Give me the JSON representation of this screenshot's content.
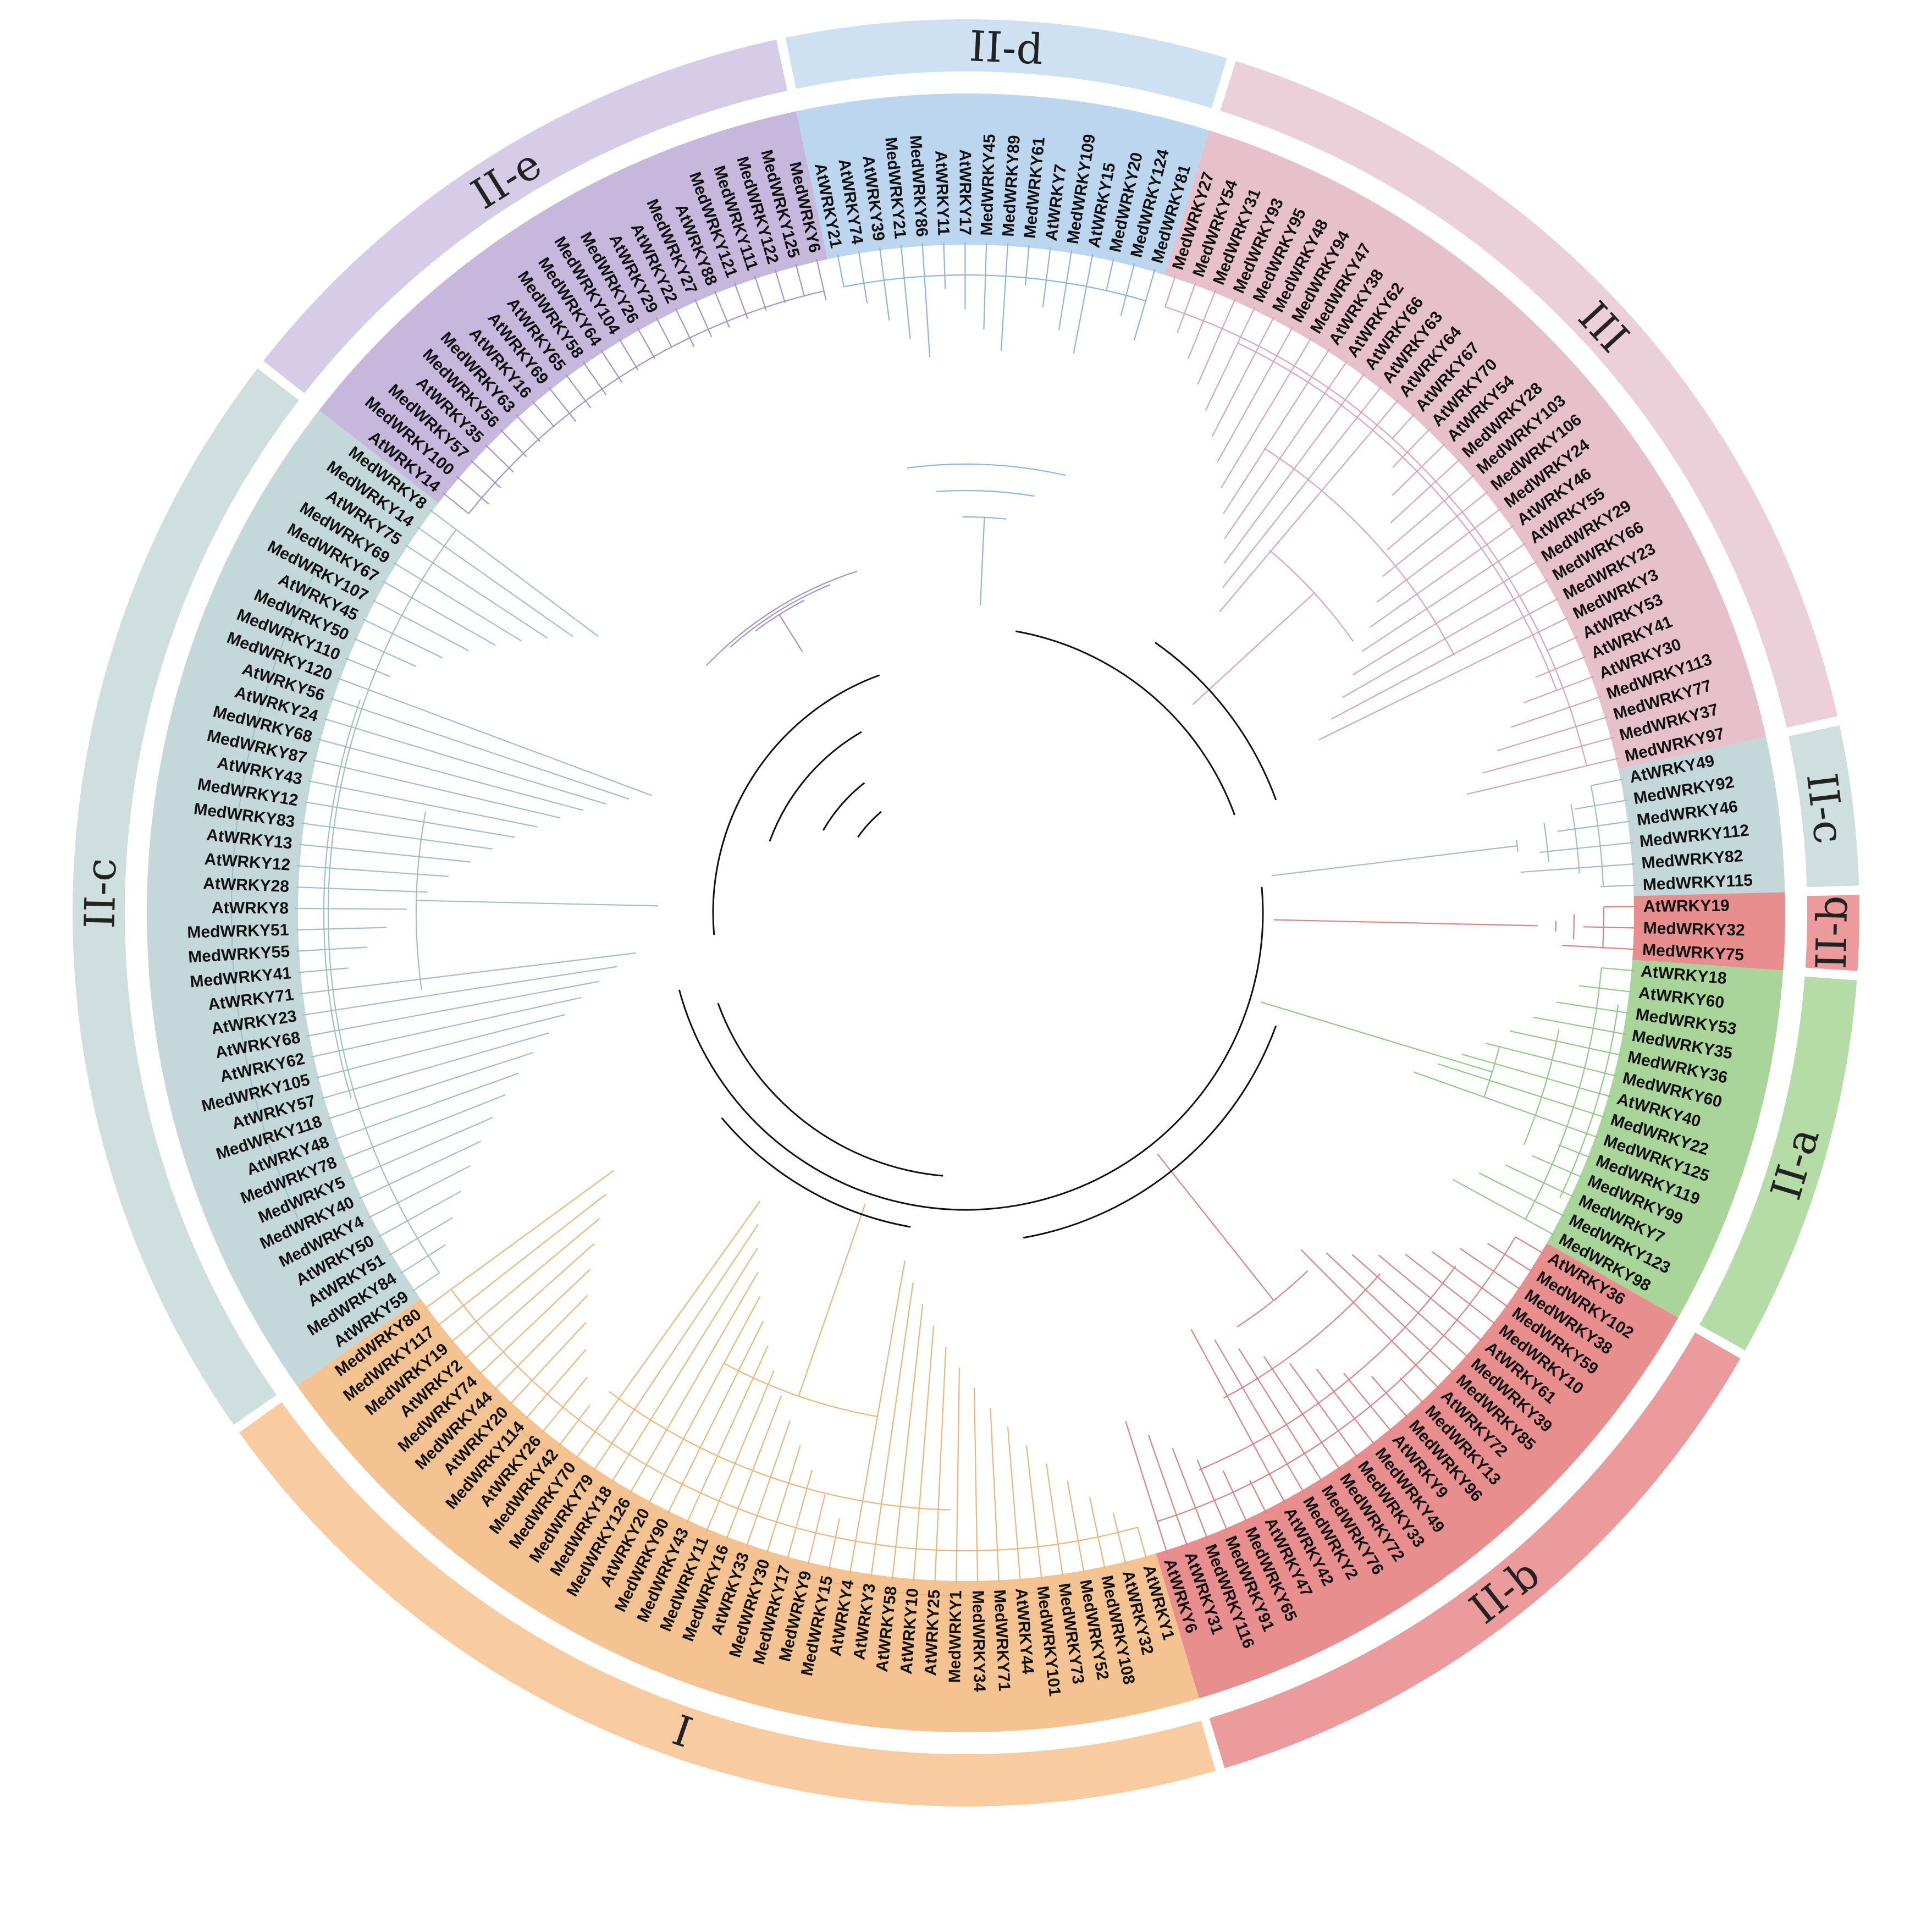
{
  "groups": [
    {
      "label": "I",
      "name": "group-I",
      "arc_color": "#f8cba0",
      "bg_color": "#f5c391",
      "line_color": "#f0b47a"
    },
    {
      "label": "II-a",
      "name": "group-IIa",
      "arc_color": "#b5dca6",
      "bg_color": "#a9d49a",
      "line_color": "#92c987"
    },
    {
      "label": "II-b",
      "name": "group-IIb",
      "arc_color": "#eb9b9b",
      "bg_color": "#e88e8e",
      "line_color": "#e27f7f"
    },
    {
      "label": "II-c",
      "name": "group-IIc",
      "arc_color": "#cfdfdf",
      "bg_color": "#c4d8d9",
      "line_color": "#9fbfc5"
    },
    {
      "label": "II-d",
      "name": "group-IId",
      "arc_color": "#cde1f2",
      "bg_color": "#bcd6ef",
      "line_color": "#8db5e2"
    },
    {
      "label": "II-e",
      "name": "group-IIe",
      "arc_color": "#d6cce7",
      "bg_color": "#c6b7dd",
      "line_color": "#a592cd"
    },
    {
      "label": "III",
      "name": "group-III",
      "arc_color": "#ecd0d9",
      "bg_color": "#e6c1cc",
      "line_color": "#dba3b4"
    }
  ],
  "sectors": [
    {
      "group": "group-IIc",
      "leaves": [
        "AtWRKY49",
        "MedWRKY92",
        "MedWRKY46",
        "MedWRKY112",
        "MedWRKY82",
        "MedWRKY115"
      ]
    },
    {
      "group": "group-IIb",
      "leaves": [
        "AtWRKY19",
        "MedWRKY32",
        "MedWRKY75"
      ]
    },
    {
      "group": "group-IIa",
      "leaves": [
        "AtWRKY18",
        "AtWRKY60",
        "MedWRKY53",
        "MedWRKY35",
        "MedWRKY36",
        "MedWRKY60",
        "AtWRKY40",
        "MedWRKY22",
        "MedWRKY125",
        "MedWRKY119",
        "MedWRKY99",
        "MedWRKY7",
        "MedWRKY123",
        "MedWRKY98"
      ]
    },
    {
      "group": "group-IIb",
      "leaves": [
        "AtWRKY36",
        "MedWRKY102",
        "MedWRKY38",
        "MedWRKY59",
        "MedWRKY10",
        "AtWRKY61",
        "MedWRKY39",
        "MedWRKY85",
        "AtWRKY72",
        "MedWRKY13",
        "MedWRKY96",
        "AtWRKY9",
        "MedWRKY49",
        "MedWRKY33",
        "MedWRKY72",
        "MedWRKY76",
        "MedWRKY2",
        "AtWRKY42",
        "AtWRKY47",
        "MedWRKY65",
        "MedWRKY91",
        "MedWRKY116",
        "AtWRKY31",
        "AtWRKY6"
      ]
    },
    {
      "group": "group-I",
      "leaves": [
        "AtWRKY1",
        "AtWRKY32",
        "MedWRKY108",
        "MedWRKY52",
        "MedWRKY73",
        "MedWRKY101",
        "AtWRKY44",
        "MedWRKY71",
        "MedWRKY34",
        "MedWRKY1",
        "AtWRKY25",
        "AtWRKY10",
        "AtWRKY58",
        "AtWRKY3",
        "AtWRKY4",
        "MedWRKY15",
        "MedWRKY9",
        "MedWRKY17",
        "MedWRKY30",
        "AtWRKY33",
        "MedWRKY16",
        "MedWRKY11",
        "MedWRKY43",
        "MedWRKY90",
        "AtWRKY20",
        "MedWRKY126",
        "MedWRKY18",
        "MedWRKY79",
        "MedWRKY70",
        "MedWRKY42",
        "AtWRKY26",
        "MedWRKY114",
        "AtWRKY20",
        "MedWRKY44",
        "MedWRKY74",
        "AtWRKY2",
        "MedWRKY19",
        "MedWRKY117",
        "MedWRKY80"
      ]
    },
    {
      "group": "group-IIc",
      "leaves": [
        "AtWRKY59",
        "MedWRKY84",
        "AtWRKY51",
        "AtWRKY50",
        "MedWRKY4",
        "MedWRKY40",
        "MedWRKY5",
        "MedWRKY78",
        "AtWRKY48",
        "MedWRKY118",
        "AtWRKY57",
        "MedWRKY105",
        "AtWRKY62",
        "AtWRKY68",
        "AtWRKY23",
        "AtWRKY71",
        "MedWRKY41",
        "MedWRKY55",
        "MedWRKY51",
        "AtWRKY8",
        "AtWRKY28",
        "AtWRKY12",
        "AtWRKY13",
        "MedWRKY83",
        "MedWRKY12",
        "AtWRKY43",
        "MedWRKY87",
        "MedWRKY68",
        "AtWRKY24",
        "AtWRKY56",
        "MedWRKY120",
        "MedWRKY110",
        "MedWRKY50",
        "AtWRKY45",
        "MedWRKY107",
        "MedWRKY67",
        "MedWRKY69",
        "AtWRKY75",
        "MedWRKY14",
        "MedWRKY8"
      ]
    },
    {
      "group": "group-IIe",
      "leaves": [
        "AtWRKY14",
        "MedWRKY100",
        "MedWRKY57",
        "AtWRKY35",
        "MedWRKY56",
        "MedWRKY63",
        "AtWRKY16",
        "AtWRKY69",
        "AtWRKY65",
        "MedWRKY58",
        "MedWRKY64",
        "MedWRKY104",
        "MedWRKY26",
        "AtWRKY29",
        "AtWRKY22",
        "MedWRKY27",
        "AtWRKY88",
        "MedWRKY121",
        "MedWRKY111",
        "MedWRKY122",
        "MedWRKY125",
        "MedWRKY6"
      ]
    },
    {
      "group": "group-IId",
      "leaves": [
        "AtWRKY21",
        "AtWRKY74",
        "AtWRKY39",
        "MedWRKY21",
        "MedWRKY86",
        "AtWRKY11",
        "AtWRKY17",
        "MedWRKY45",
        "MedWRKY89",
        "MedWRKY61",
        "AtWRKY7",
        "MedWRKY109",
        "AtWRKY15",
        "MedWRKY20",
        "MedWRKY124",
        "MedWRKY81"
      ]
    },
    {
      "group": "group-III",
      "leaves": [
        "MedWRKY27",
        "MedWRKY54",
        "MedWRKY31",
        "MedWRKY93",
        "MedWRKY95",
        "MedWRKY48",
        "MedWRKY94",
        "MedWRKY47",
        "AtWRKY38",
        "AtWRKY62",
        "AtWRKY66",
        "AtWRKY63",
        "AtWRKY64",
        "AtWRKY67",
        "AtWRKY70",
        "AtWRKY54",
        "MedWRKY28",
        "MedWRKY103",
        "MedWRKY106",
        "MedWRKY24",
        "AtWRKY46",
        "AtWRKY55",
        "MedWRKY29",
        "MedWRKY66",
        "MedWRKY23",
        "MedWRKY3",
        "AtWRKY53",
        "AtWRKY41",
        "AtWRKY30",
        "MedWRKY113",
        "MedWRKY77",
        "MedWRKY37",
        "MedWRKY97"
      ]
    }
  ]
}
